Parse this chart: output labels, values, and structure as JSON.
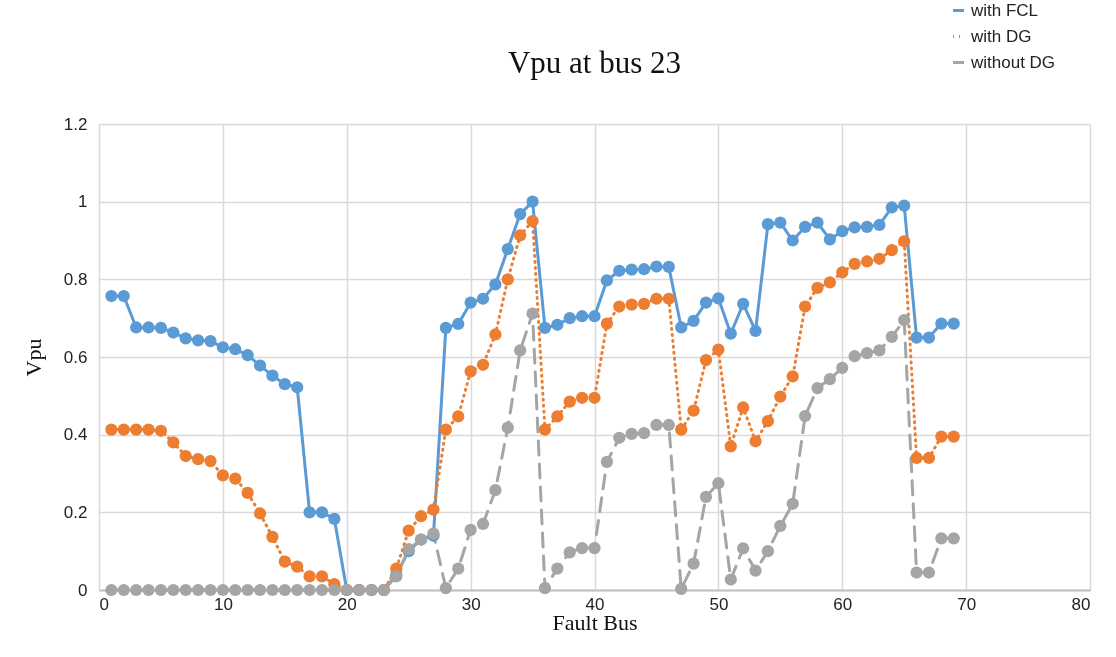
{
  "chart_data": {
    "type": "line",
    "title": "Vpu at bus 23",
    "xlabel": "Fault Bus",
    "ylabel": "Vpu",
    "x": [
      1,
      2,
      3,
      4,
      5,
      6,
      7,
      8,
      9,
      10,
      11,
      12,
      13,
      14,
      15,
      16,
      17,
      18,
      19,
      20,
      21,
      22,
      23,
      24,
      25,
      26,
      27,
      28,
      29,
      30,
      31,
      32,
      33,
      34,
      35,
      36,
      37,
      38,
      39,
      40,
      41,
      42,
      43,
      44,
      45,
      46,
      47,
      48,
      49,
      50,
      51,
      52,
      53,
      54,
      55,
      56,
      57,
      58,
      59,
      60,
      61,
      62,
      63,
      64,
      65,
      66,
      67,
      68,
      69
    ],
    "series": [
      {
        "name": "with FCL",
        "color": "#5b9bd5",
        "line_style": "solid",
        "values": [
          0.757,
          0.757,
          0.676,
          0.676,
          0.675,
          0.663,
          0.648,
          0.643,
          0.641,
          0.625,
          0.62,
          0.605,
          0.578,
          0.552,
          0.53,
          0.522,
          0.2,
          0.2,
          0.183,
          0,
          0,
          0,
          0,
          0.04,
          0.1,
          0.13,
          0.14,
          0.675,
          0.685,
          0.74,
          0.75,
          0.787,
          0.878,
          0.968,
          1.0,
          0.675,
          0.683,
          0.7,
          0.705,
          0.705,
          0.797,
          0.822,
          0.825,
          0.826,
          0.833,
          0.832,
          0.676,
          0.693,
          0.74,
          0.751,
          0.66,
          0.737,
          0.667,
          0.942,
          0.946,
          0.9,
          0.935,
          0.946,
          0.903,
          0.924,
          0.934,
          0.935,
          0.94,
          0.985,
          0.99,
          0.65,
          0.65,
          0.686,
          0.686
        ]
      },
      {
        "name": "with DG",
        "color": "#ed7d31",
        "line_style": "dotted",
        "values": [
          0.413,
          0.413,
          0.413,
          0.413,
          0.41,
          0.38,
          0.345,
          0.337,
          0.332,
          0.295,
          0.287,
          0.25,
          0.197,
          0.137,
          0.073,
          0.06,
          0.035,
          0.035,
          0.015,
          0,
          0,
          0,
          0,
          0.055,
          0.153,
          0.19,
          0.207,
          0.413,
          0.447,
          0.563,
          0.58,
          0.658,
          0.8,
          0.913,
          0.95,
          0.413,
          0.447,
          0.485,
          0.495,
          0.495,
          0.686,
          0.73,
          0.735,
          0.737,
          0.75,
          0.75,
          0.413,
          0.462,
          0.592,
          0.619,
          0.37,
          0.47,
          0.383,
          0.435,
          0.498,
          0.55,
          0.73,
          0.778,
          0.792,
          0.818,
          0.84,
          0.846,
          0.853,
          0.875,
          0.898,
          0.34,
          0.34,
          0.395,
          0.395
        ]
      },
      {
        "name": "without DG",
        "color": "#a5a5a5",
        "line_style": "dashed",
        "values": [
          0,
          0,
          0,
          0,
          0,
          0,
          0,
          0,
          0,
          0,
          0,
          0,
          0,
          0,
          0,
          0,
          0,
          0,
          0,
          0,
          0,
          0,
          0,
          0.035,
          0.105,
          0.13,
          0.145,
          0.005,
          0.055,
          0.155,
          0.17,
          0.257,
          0.418,
          0.617,
          0.712,
          0.005,
          0.055,
          0.097,
          0.108,
          0.108,
          0.33,
          0.392,
          0.402,
          0.404,
          0.425,
          0.425,
          0.003,
          0.068,
          0.24,
          0.275,
          0.027,
          0.107,
          0.05,
          0.1,
          0.165,
          0.222,
          0.448,
          0.52,
          0.543,
          0.572,
          0.602,
          0.61,
          0.617,
          0.652,
          0.695,
          0.045,
          0.045,
          0.133,
          0.133
        ]
      }
    ],
    "xlim": [
      0,
      80
    ],
    "xticks": [
      0,
      10,
      20,
      30,
      40,
      50,
      60,
      70,
      80
    ],
    "ylim": [
      0,
      1.2
    ],
    "yticks": [
      0,
      0.2,
      0.4,
      0.6,
      0.8,
      1,
      1.2
    ],
    "grid": true,
    "legend": "top right",
    "marker": "circle"
  }
}
